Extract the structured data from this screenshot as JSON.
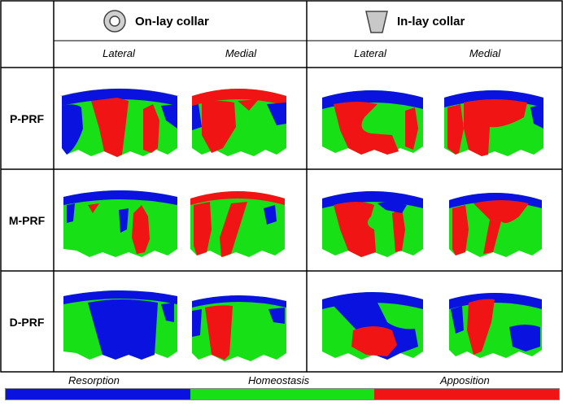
{
  "collars": [
    {
      "label": "On-lay collar",
      "icon": "ring-icon"
    },
    {
      "label": "In-lay collar",
      "icon": "trapezoid-icon"
    }
  ],
  "sides": [
    "Lateral",
    "Medial",
    "Lateral",
    "Medial"
  ],
  "rows": [
    "P-PRF",
    "M-PRF",
    "D-PRF"
  ],
  "legend": {
    "labels": [
      "Resorption",
      "Homeostasis",
      "Apposition"
    ],
    "colors": [
      "#0a12e0",
      "#17e017",
      "#f01414"
    ]
  }
}
